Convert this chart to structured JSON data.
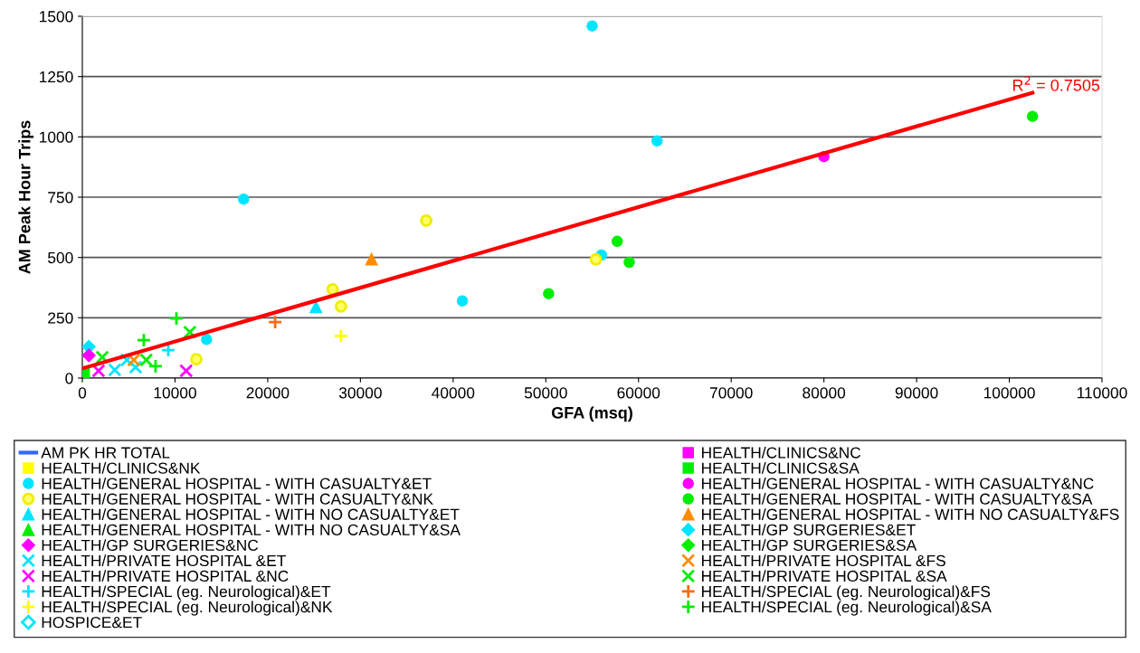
{
  "chart_data": {
    "type": "scatter",
    "xlabel": "GFA (msq)",
    "ylabel": "AM Peak Hour Trips",
    "xlim": [
      0,
      110000
    ],
    "xticks": [
      0,
      10000,
      20000,
      30000,
      40000,
      50000,
      60000,
      70000,
      80000,
      90000,
      100000,
      110000
    ],
    "ylim": [
      0,
      1500
    ],
    "yticks": [
      0,
      250,
      500,
      750,
      1000,
      1250,
      1500
    ],
    "grid": "y",
    "legend": "bottom",
    "annotations": [
      "R$^{2}$ = 0.7505"
    ],
    "series": [
      {
        "name": "AM PK HR TOTAL",
        "color": "#3366ff",
        "marker": "none"
      },
      {
        "name": "HEALTH/CLINICS&NC",
        "color": "#ff00ff",
        "marker": "square"
      },
      {
        "name": "HEALTH/CLINICS&NK",
        "color": "#ffff00",
        "marker": "square"
      },
      {
        "name": "HEALTH/CLINICS&SA",
        "color": "#00ee00",
        "marker": "square",
        "x": [
          200
        ],
        "values": [
          19
        ]
      },
      {
        "name": "HEALTH/GENERAL HOSPITAL - WITH CASUALTY&ET",
        "color": "#00e5ff",
        "marker": "circle",
        "x": [
          55000,
          62000,
          17400,
          56000,
          41000,
          13400
        ],
        "values": [
          1460,
          983,
          742,
          510,
          320,
          160
        ]
      },
      {
        "name": "HEALTH/GENERAL HOSPITAL - WITH CASUALTY&NC",
        "color": "#ff00ff",
        "marker": "circle",
        "x": [
          80000
        ],
        "values": [
          918
        ]
      },
      {
        "name": "HEALTH/GENERAL HOSPITAL - WITH CASUALTY&NK",
        "color": "#ffff66",
        "marker": "circle_open",
        "x": [
          37100,
          27000,
          27900,
          55400,
          12300
        ],
        "values": [
          653,
          368,
          297,
          492,
          78
        ]
      },
      {
        "name": "HEALTH/GENERAL HOSPITAL - WITH CASUALTY&SA",
        "color": "#00ee00",
        "marker": "circle",
        "x": [
          102500,
          57700,
          59000,
          50300
        ],
        "values": [
          1085,
          567,
          480,
          350
        ]
      },
      {
        "name": "HEALTH/GENERAL HOSPITAL - WITH NO CASUALTY&ET",
        "color": "#00e5ff",
        "marker": "triangle",
        "x": [
          25200
        ],
        "values": [
          295
        ]
      },
      {
        "name": "HEALTH/GENERAL HOSPITAL - WITH NO CASUALTY&FS",
        "color": "#ff8c00",
        "marker": "triangle",
        "x": [
          31200
        ],
        "values": [
          493
        ]
      },
      {
        "name": "HEALTH/GENERAL HOSPITAL - WITH NO CASUALTY&SA",
        "color": "#00ee00",
        "marker": "triangle"
      },
      {
        "name": "HEALTH/GP SURGERIES&ET",
        "color": "#00e5ff",
        "marker": "diamond",
        "x": [
          700
        ],
        "values": [
          130
        ]
      },
      {
        "name": "HEALTH/GP SURGERIES&NC",
        "color": "#ff00ff",
        "marker": "diamond",
        "x": [
          700
        ],
        "values": [
          94
        ]
      },
      {
        "name": "HEALTH/GP SURGERIES&SA",
        "color": "#00ee00",
        "marker": "diamond"
      },
      {
        "name": "HEALTH/PRIVATE HOSPITAL &ET",
        "color": "#00e5ff",
        "marker": "cross",
        "x": [
          3500,
          5750,
          4800
        ],
        "values": [
          34,
          45,
          75
        ]
      },
      {
        "name": "HEALTH/PRIVATE HOSPITAL &FS",
        "color": "#ff8c00",
        "marker": "cross",
        "x": [
          5560
        ],
        "values": [
          75
        ]
      },
      {
        "name": "HEALTH/PRIVATE HOSPITAL &NC",
        "color": "#ff00ff",
        "marker": "cross",
        "x": [
          11200,
          1750
        ],
        "values": [
          30,
          30
        ]
      },
      {
        "name": "HEALTH/PRIVATE HOSPITAL &SA",
        "color": "#00ee00",
        "marker": "cross",
        "x": [
          11600,
          2150,
          6900
        ],
        "values": [
          190,
          86,
          75
        ]
      },
      {
        "name": "HEALTH/SPECIAL (eg. Neurological)&ET",
        "color": "#00e5ff",
        "marker": "plus",
        "x": [
          9270
        ],
        "values": [
          116
        ]
      },
      {
        "name": "HEALTH/SPECIAL (eg. Neurological)&FS",
        "color": "#ff6a13",
        "marker": "plus",
        "x": [
          20800
        ],
        "values": [
          232
        ]
      },
      {
        "name": "HEALTH/SPECIAL (eg. Neurological)&NK",
        "color": "#ffff00",
        "marker": "plus",
        "x": [
          27900
        ],
        "values": [
          175
        ]
      },
      {
        "name": "HEALTH/SPECIAL (eg. Neurological)&SA",
        "color": "#00ee00",
        "marker": "plus",
        "x": [
          10150,
          6630,
          7900
        ],
        "values": [
          247,
          157,
          49
        ]
      },
      {
        "name": "HOSPICE&ET",
        "color": "#00e5ff",
        "marker": "diamond_open"
      },
      {
        "type": "line",
        "color": "#ff0000",
        "x": [
          0,
          102500
        ],
        "values": [
          40,
          1183
        ]
      }
    ]
  }
}
